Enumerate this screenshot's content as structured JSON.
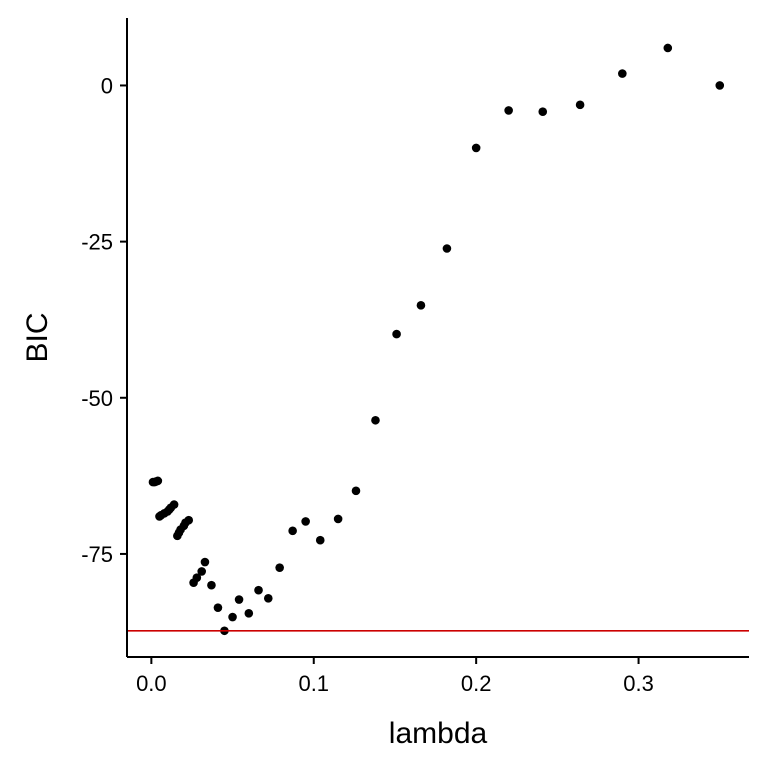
{
  "chart_data": {
    "type": "scatter",
    "title": "",
    "xlabel": "lambda",
    "ylabel": "BIC",
    "xlim": [
      -0.015,
      0.368
    ],
    "ylim": [
      -91.5,
      10.8
    ],
    "xticks": [
      0.0,
      0.1,
      0.2,
      0.3
    ],
    "xtick_labels": [
      "0.0",
      "0.1",
      "0.2",
      "0.3"
    ],
    "yticks": [
      0,
      -25,
      -50,
      -75
    ],
    "ytick_labels": [
      "0",
      "-25",
      "-50",
      "-75"
    ],
    "grid": false,
    "legend": "none",
    "point_color": "#000000",
    "reference_line": {
      "orientation": "horizontal",
      "y": -87.3,
      "color": "#cc0000"
    },
    "x": [
      0.001,
      0.002,
      0.003,
      0.004,
      0.005,
      0.006,
      0.008,
      0.01,
      0.011,
      0.012,
      0.014,
      0.016,
      0.017,
      0.018,
      0.02,
      0.021,
      0.023,
      0.026,
      0.028,
      0.031,
      0.033,
      0.037,
      0.041,
      0.045,
      0.05,
      0.054,
      0.06,
      0.066,
      0.072,
      0.079,
      0.087,
      0.095,
      0.104,
      0.115,
      0.126,
      0.138,
      0.151,
      0.166,
      0.182,
      0.2,
      0.22,
      0.241,
      0.264,
      0.29,
      0.318,
      0.35
    ],
    "y": [
      -63.5,
      -63.5,
      -63.4,
      -63.3,
      -69.0,
      -68.8,
      -68.5,
      -68.2,
      -67.9,
      -67.6,
      -67.1,
      -72.1,
      -71.6,
      -71.1,
      -70.5,
      -70.0,
      -69.6,
      -79.6,
      -78.8,
      -77.8,
      -76.3,
      -80.0,
      -83.6,
      -87.3,
      -85.1,
      -82.3,
      -84.5,
      -80.8,
      -82.1,
      -77.2,
      -71.3,
      -69.8,
      -72.8,
      -69.4,
      -64.9,
      -53.6,
      -39.8,
      -35.2,
      -26.1,
      -10.0,
      -4.0,
      -4.2,
      -3.1,
      1.9,
      6.0,
      0.0
    ]
  }
}
